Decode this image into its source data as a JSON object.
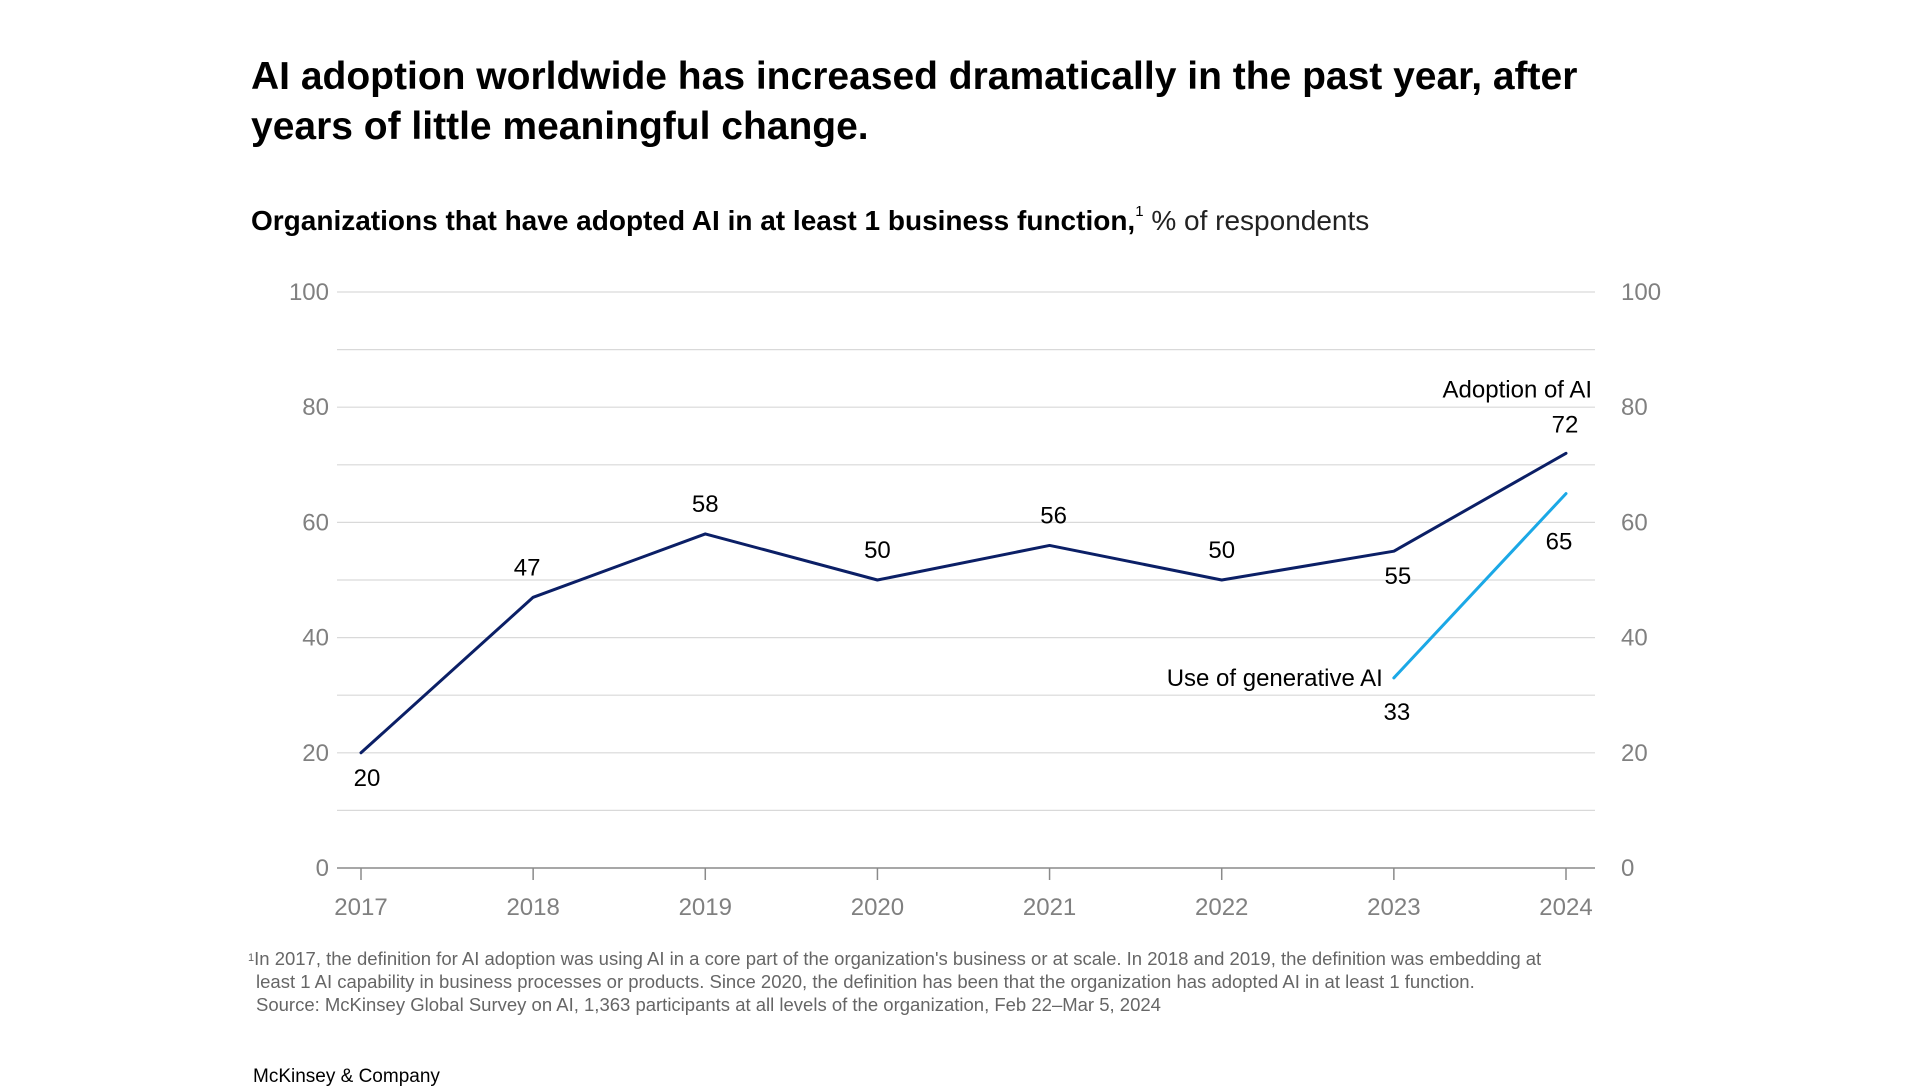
{
  "title": "AI adoption worldwide has increased dramatically in the past year, after years of little meaningful change.",
  "subtitle": {
    "main": "Organizations that have adopted AI in at least 1 business function,",
    "footnote_marker": "1",
    "unit": " % of respondents"
  },
  "chart_data": {
    "type": "line",
    "categories": [
      "2017",
      "2018",
      "2019",
      "2020",
      "2021",
      "2022",
      "2023",
      "2024"
    ],
    "series": [
      {
        "name": "Adoption of AI",
        "color": "#0b1f66",
        "x": [
          "2017",
          "2018",
          "2019",
          "2020",
          "2021",
          "2022",
          "2023",
          "2024"
        ],
        "values": [
          20,
          47,
          58,
          50,
          56,
          50,
          55,
          72
        ]
      },
      {
        "name": "Use of generative AI",
        "color": "#1ba8e6",
        "x": [
          "2023",
          "2024"
        ],
        "values": [
          33,
          65
        ]
      }
    ],
    "ylim": [
      0,
      100
    ],
    "yticks_left": [
      0,
      20,
      40,
      60,
      80,
      100
    ],
    "yticks_right": [
      0,
      20,
      40,
      60,
      80,
      100
    ],
    "gridlines": [
      0,
      10,
      20,
      30,
      40,
      50,
      60,
      70,
      80,
      90,
      100
    ],
    "grid": true,
    "legend": "inline labels",
    "xlabel": "",
    "ylabel": ""
  },
  "notes": {
    "marker": "1",
    "line1": "In 2017, the definition for AI adoption was using AI in a core part of the organization's business or at scale. In 2018 and 2019, the definition was embedding at",
    "line2": "least 1 AI capability in business processes or products. Since 2020, the definition has been that the organization has adopted AI in at least 1 function.",
    "source": "Source: McKinsey Global Survey on AI, 1,363 participants at all levels of the organization, Feb 22–Mar 5, 2024"
  },
  "brand": "McKinsey & Company"
}
